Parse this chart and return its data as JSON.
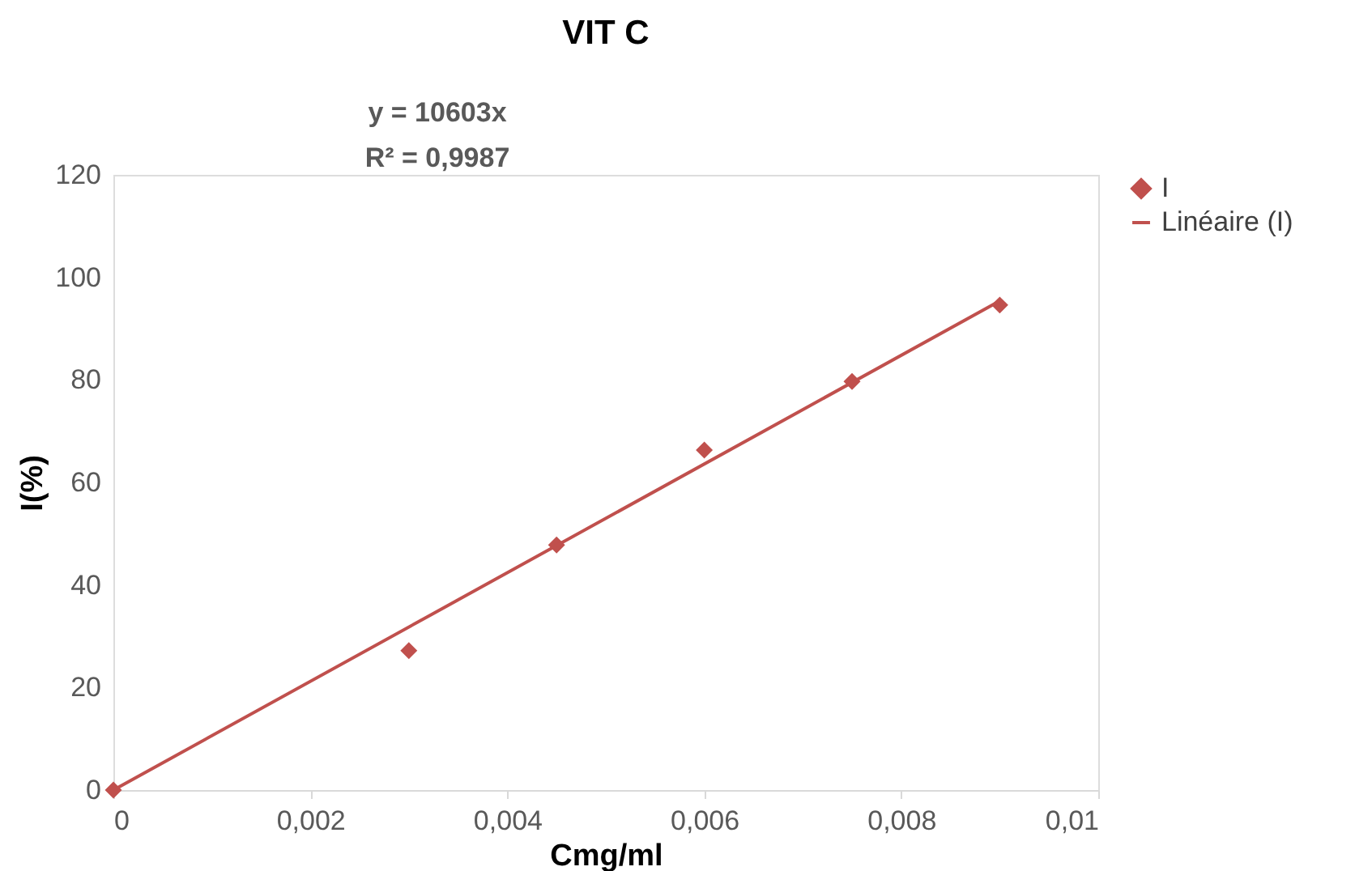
{
  "chart_data": {
    "type": "scatter",
    "title": "VIT C",
    "xlabel": "Cmg/ml",
    "ylabel": "I(%)",
    "annotations": [
      "y = 10603x",
      "R² = 0,9987"
    ],
    "series": [
      {
        "name": "I",
        "marker": "diamond",
        "color": "#c0504d",
        "x": [
          0,
          0.003,
          0.0045,
          0.006,
          0.0075,
          0.009
        ],
        "values": [
          0,
          27.2,
          47.8,
          66.3,
          79.7,
          94.6
        ]
      },
      {
        "name": "Linéaire (I)",
        "type": "line",
        "marker": "none",
        "line_style": "solid",
        "color": "#c0504d",
        "x": [
          0,
          0.009
        ],
        "values": [
          0,
          95.4
        ]
      }
    ],
    "xlim": [
      0,
      0.01
    ],
    "xticks": [
      0,
      {
        "value": 0.002,
        "label": "0,002"
      },
      {
        "value": 0.004,
        "label": "0,004"
      },
      {
        "value": 0.006,
        "label": "0,006"
      },
      {
        "value": 0.008,
        "label": "0,008"
      },
      {
        "value": 0.01,
        "label": "0,01"
      }
    ],
    "ylim": [
      0,
      120
    ],
    "yticks": [
      0,
      20,
      40,
      60,
      80,
      100,
      120
    ],
    "grid": false,
    "legend": "right"
  }
}
